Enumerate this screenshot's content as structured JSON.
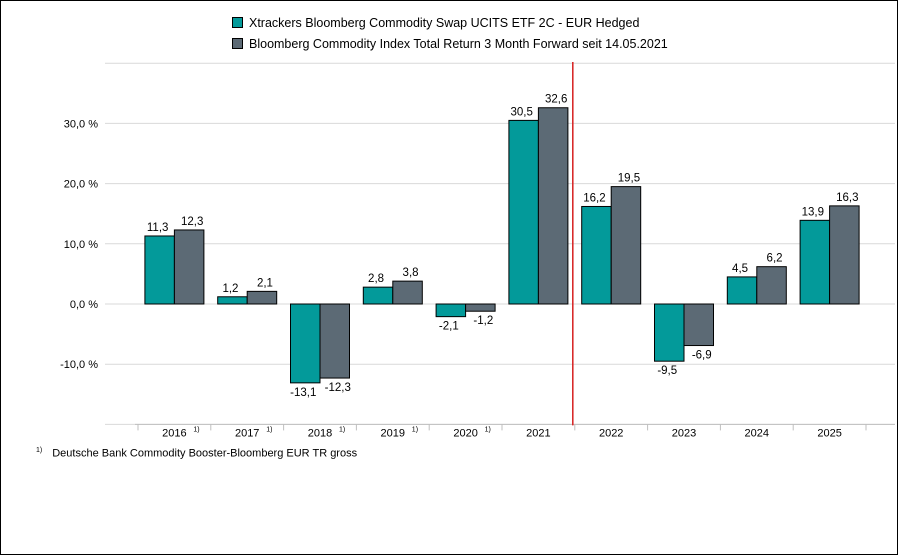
{
  "chart_data": {
    "type": "bar",
    "categories": [
      "2016",
      "2017",
      "2018",
      "2019",
      "2020",
      "2021",
      "2022",
      "2023",
      "2024",
      "2025"
    ],
    "category_footnote_marks": [
      "1)",
      "1)",
      "1)",
      "1)",
      "1)",
      "",
      "",
      "",
      "",
      ""
    ],
    "series": [
      {
        "name": "Xtrackers Bloomberg Commodity Swap UCITS ETF 2C - EUR Hedged",
        "values": [
          11.3,
          1.2,
          -13.1,
          2.8,
          -2.1,
          30.5,
          16.2,
          -9.5,
          4.5,
          13.9
        ],
        "color": "#039a9a"
      },
      {
        "name": "Bloomberg Commodity Index Total Return 3 Month Forward seit 14.05.2021",
        "values": [
          12.3,
          2.1,
          -12.3,
          3.8,
          -1.2,
          32.6,
          19.5,
          -6.9,
          6.2,
          16.3
        ],
        "color": "#5c6a75"
      }
    ],
    "value_labels": [
      [
        "11,3",
        "1,2",
        "-13,1",
        "2,8",
        "-2,1",
        "30,5",
        "16,2",
        "-9,5",
        "4,5",
        "13,9"
      ],
      [
        "12,3",
        "2,1",
        "-12,3",
        "3,8",
        "-1,2",
        "32,6",
        "19,5",
        "-6,9",
        "6,2",
        "16,3"
      ]
    ],
    "y_ticks": [
      30,
      20,
      10,
      0,
      -10
    ],
    "y_tick_labels": [
      "30,0 %",
      "20,0 %",
      "10,0 %",
      "0,0 %",
      "-10,0 %"
    ],
    "ylim": [
      -20,
      40
    ],
    "vertical_marker_after_category": "2021",
    "marker_color": "#d62020",
    "legend_position": "top",
    "grid": true
  },
  "footnote": {
    "mark": "1)",
    "text": "Deutsche Bank Commodity Booster-Bloomberg EUR TR gross"
  }
}
